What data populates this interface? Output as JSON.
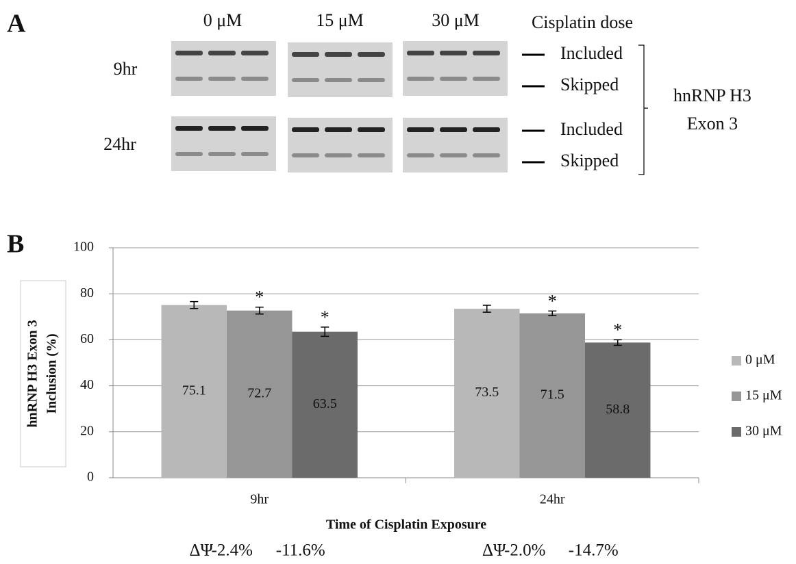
{
  "panel_a": {
    "label": "A",
    "dose_header": "Cisplatin dose",
    "doses": [
      "0 μM",
      "15 μM",
      "30 μM"
    ],
    "times": [
      "9hr",
      "24hr"
    ],
    "bands": [
      "Included",
      "Skipped",
      "Included",
      "Skipped"
    ],
    "bracket_label": [
      "hnRNP H3",
      "Exon 3"
    ]
  },
  "chart_data": {
    "type": "bar",
    "panel_label": "B",
    "ylabel": [
      "hnRNP H3 Exon 3",
      "Inclusion (%)"
    ],
    "xlabel": "Time of Cisplatin Exposure",
    "categories": [
      "9hr",
      "24hr"
    ],
    "series": [
      {
        "name": "0 μM",
        "color": "#b8b8b8",
        "values": [
          75.1,
          73.5
        ],
        "errors": [
          1.5,
          1.5
        ],
        "annotations": [
          null,
          null
        ]
      },
      {
        "name": "15 μM",
        "color": "#969696",
        "values": [
          72.7,
          71.5
        ],
        "errors": [
          1.5,
          1
        ],
        "annotations": [
          "*",
          "*"
        ]
      },
      {
        "name": "30 μM",
        "color": "#6b6b6b",
        "values": [
          63.5,
          58.8
        ],
        "errors": [
          2,
          1.2
        ],
        "annotations": [
          "*",
          "*"
        ]
      }
    ],
    "ylim": [
      0,
      100
    ],
    "yticks": [
      0,
      20,
      40,
      60,
      80,
      100
    ],
    "grid": true,
    "legend": "right",
    "delta_psi": [
      {
        "label": "ΔΨ",
        "values": [
          -2.4,
          -11.6
        ],
        "value_labels": [
          "-2.4%",
          "-11.6%"
        ]
      },
      {
        "label": "ΔΨ",
        "values": [
          -2.0,
          -14.7
        ],
        "value_labels": [
          "-2.0%",
          "-14.7%"
        ]
      }
    ]
  }
}
